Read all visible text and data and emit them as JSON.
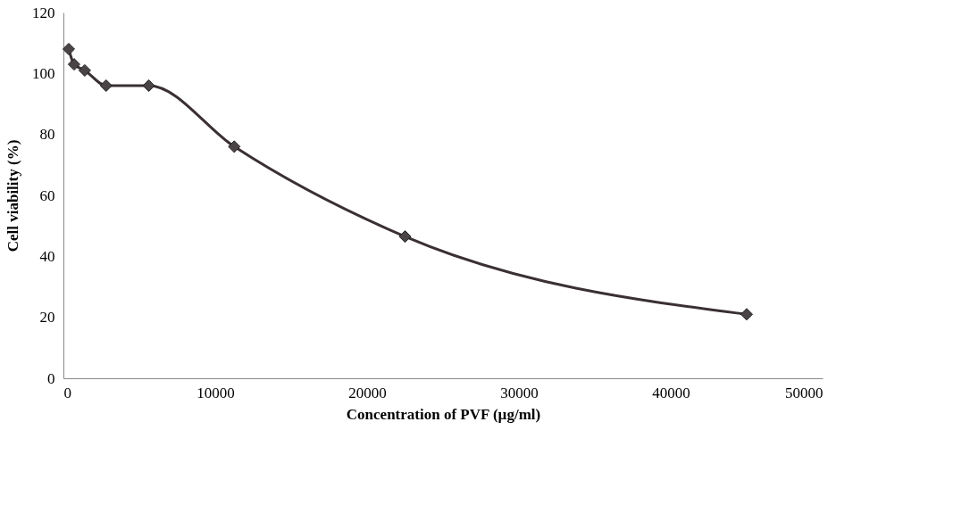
{
  "chart_data": {
    "type": "line",
    "xlabel": "Concentration of PVF (µg/ml)",
    "ylabel": "Cell viability (%)",
    "x": [
      352,
      703,
      1406,
      2813,
      5625,
      11250,
      22500,
      45000
    ],
    "series": [
      {
        "color": "#3a3033",
        "values": [
          108,
          103,
          101,
          96,
          96,
          76,
          46.5,
          21
        ]
      }
    ],
    "xlim": [
      0,
      50000
    ],
    "xticks": [
      0,
      10000,
      20000,
      30000,
      40000,
      50000
    ],
    "ylim": [
      0,
      120
    ],
    "yticks": [
      0,
      20,
      40,
      60,
      80,
      100,
      120
    ],
    "marker": "diamond",
    "line_style": "solid",
    "grid": false
  }
}
